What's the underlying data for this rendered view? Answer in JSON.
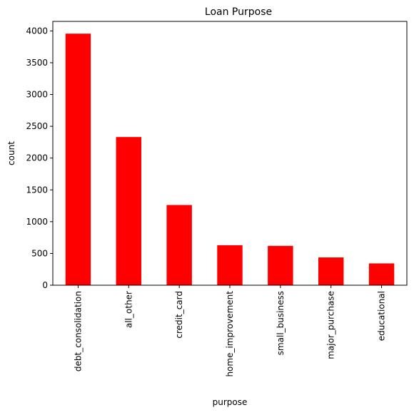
{
  "chart_data": {
    "type": "bar",
    "title": "Loan Purpose",
    "xlabel": "purpose",
    "ylabel": "count",
    "categories": [
      "debt_consolidation",
      "all_other",
      "credit_card",
      "home_improvement",
      "small_business",
      "major_purchase",
      "educational"
    ],
    "values": [
      3957,
      2331,
      1262,
      629,
      619,
      437,
      343
    ],
    "ylim": [
      0,
      4150
    ],
    "yticks": [
      0,
      500,
      1000,
      1500,
      2000,
      2500,
      3000,
      3500,
      4000
    ],
    "grid": false,
    "legend": "none",
    "bar_color": "#ff0000"
  }
}
